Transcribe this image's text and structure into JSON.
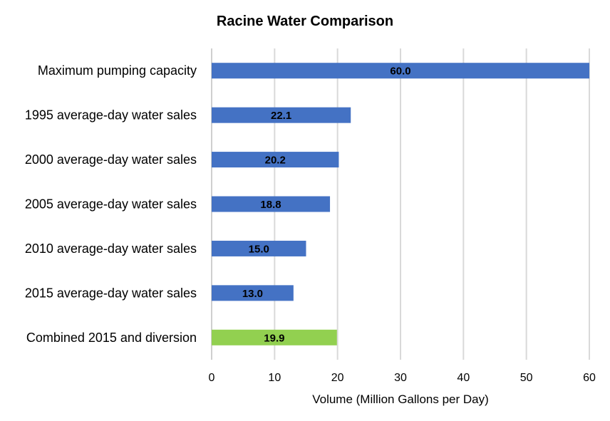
{
  "chart_data": {
    "type": "bar",
    "orientation": "horizontal",
    "title": "Racine Water Comparison",
    "xlabel": "Volume (Million Gallons per Day)",
    "ylabel": "",
    "xlim": [
      0,
      60
    ],
    "xticks": [
      0,
      10,
      20,
      30,
      40,
      50,
      60
    ],
    "grid": true,
    "categories": [
      "Maximum pumping capacity",
      "1995 average-day water sales",
      "2000 average-day water sales",
      "2005 average-day water sales",
      "2010 average-day water sales",
      "2015 average-day water sales",
      "Combined 2015 and diversion"
    ],
    "values": [
      60.0,
      22.1,
      20.2,
      18.8,
      15.0,
      13.0,
      19.9
    ],
    "data_labels": [
      "60.0",
      "22.1",
      "20.2",
      "18.8",
      "15.0",
      "13.0",
      "19.9"
    ],
    "colors": [
      "#4472c4",
      "#4472c4",
      "#4472c4",
      "#4472c4",
      "#4472c4",
      "#4472c4",
      "#92d050"
    ]
  }
}
